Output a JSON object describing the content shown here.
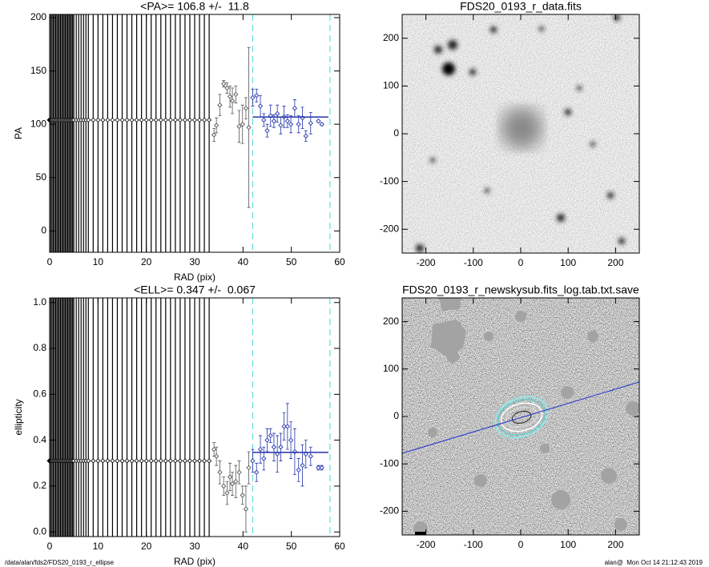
{
  "chart_data": [
    {
      "type": "profile",
      "title": "<PA>= 106.8 +/-  11.8",
      "xlabel": "RAD (pix)",
      "ylabel": "PA",
      "xlim": [
        0,
        60
      ],
      "xticks": [
        0,
        10,
        20,
        30,
        40,
        50,
        60
      ],
      "ylim": [
        -20,
        203
      ],
      "yticks": [
        0,
        50,
        100,
        150,
        200
      ],
      "inner": {
        "x": [
          0,
          0.25,
          0.5,
          0.75,
          1,
          1.25,
          1.5,
          1.75,
          2,
          2.25,
          2.5,
          2.75,
          3,
          3.25,
          3.5,
          3.75,
          4,
          4.25,
          4.5,
          4.75,
          5,
          5.5,
          6,
          6.5,
          7,
          7.5,
          8,
          9,
          10,
          11,
          12,
          13,
          14,
          15,
          16,
          17,
          18,
          19,
          20,
          21,
          22,
          23,
          24,
          25,
          26,
          27,
          28,
          29,
          30,
          31,
          32,
          33
        ],
        "values": [
          104,
          104,
          104,
          104,
          104,
          104,
          104,
          104,
          104,
          104,
          104,
          104,
          104,
          104,
          104,
          104,
          104,
          104,
          104,
          104,
          104,
          104,
          104,
          104,
          104,
          104,
          104,
          104,
          104,
          104,
          104,
          104,
          104,
          104,
          104,
          104,
          104,
          104,
          104,
          104,
          104,
          104,
          104,
          104,
          104,
          104,
          104,
          104,
          104,
          104,
          104,
          104
        ]
      },
      "outer": {
        "x": [
          34,
          34.5,
          35.2,
          36,
          36.7,
          37.3,
          37.8,
          38.5,
          39.2,
          39.9,
          40.6,
          41.2,
          42,
          42.8,
          43.6,
          44.3,
          45,
          45.7,
          46.4,
          47.1,
          47.8,
          48.5,
          49.2,
          49.9,
          50.7,
          51.5,
          52.3,
          53,
          54,
          55.6,
          56.3
        ],
        "values": [
          90,
          99,
          118,
          138,
          134,
          126,
          122,
          128,
          98,
          100,
          115,
          97,
          125,
          127,
          117,
          104,
          94,
          108,
          103,
          110,
          99,
          107,
          103,
          100,
          115,
          100,
          106,
          89,
          101,
          103,
          100
        ],
        "errors": [
          6,
          7,
          10,
          3,
          5,
          10,
          12,
          8,
          15,
          18,
          10,
          75,
          8,
          6,
          10,
          6,
          6,
          10,
          6,
          8,
          8,
          10,
          6,
          8,
          8,
          8,
          10,
          5,
          10,
          1,
          1
        ]
      },
      "fit_value": 106.8,
      "fit_range": [
        42,
        58
      ],
      "fit_color": "#2233aa",
      "range_color": "#66dddd"
    },
    {
      "type": "image",
      "title": "FDS20_0193_r_data.fits",
      "xlim": [
        -250,
        250
      ],
      "xticks": [
        -200,
        -100,
        0,
        100,
        200
      ],
      "ylim": [
        -250,
        250
      ],
      "yticks": [
        -200,
        -100,
        0,
        100,
        200
      ]
    },
    {
      "type": "profile",
      "title": "<ELL>= 0.347 +/-  0.067",
      "xlabel": "RAD (pix)",
      "ylabel": "ellipticity",
      "xlim": [
        0,
        60
      ],
      "xticks": [
        0,
        10,
        20,
        30,
        40,
        50,
        60
      ],
      "ylim": [
        -0.02,
        1.02
      ],
      "yticks": [
        {
          "value": 0,
          "label": "0.0"
        },
        0.2,
        0.4,
        0.6,
        0.8,
        {
          "value": 1,
          "label": "1.0"
        }
      ],
      "inner": {
        "x": [
          0,
          0.25,
          0.5,
          0.75,
          1,
          1.25,
          1.5,
          1.75,
          2,
          2.25,
          2.5,
          2.75,
          3,
          3.25,
          3.5,
          3.75,
          4,
          4.25,
          4.5,
          4.75,
          5,
          5.5,
          6,
          6.5,
          7,
          7.5,
          8,
          9,
          10,
          11,
          12,
          13,
          14,
          15,
          16,
          17,
          18,
          19,
          20,
          21,
          22,
          23,
          24,
          25,
          26,
          27,
          28,
          29,
          30,
          31,
          32,
          33
        ],
        "values": [
          0.31,
          0.31,
          0.31,
          0.31,
          0.31,
          0.31,
          0.31,
          0.31,
          0.31,
          0.31,
          0.31,
          0.31,
          0.31,
          0.31,
          0.31,
          0.31,
          0.31,
          0.31,
          0.31,
          0.31,
          0.31,
          0.31,
          0.31,
          0.31,
          0.31,
          0.31,
          0.31,
          0.31,
          0.31,
          0.31,
          0.31,
          0.31,
          0.31,
          0.31,
          0.31,
          0.31,
          0.31,
          0.31,
          0.31,
          0.31,
          0.31,
          0.31,
          0.31,
          0.31,
          0.31,
          0.31,
          0.31,
          0.31,
          0.31,
          0.31,
          0.31,
          0.31
        ]
      },
      "outer": {
        "x": [
          34,
          34.5,
          35.2,
          36,
          36.7,
          37.3,
          37.8,
          38.5,
          39.2,
          39.9,
          40.6,
          41.2,
          42,
          42.8,
          43.6,
          44.3,
          45,
          45.7,
          46.4,
          47.1,
          47.8,
          48.5,
          49.2,
          49.9,
          50.7,
          51.5,
          52.3,
          53,
          54,
          55.6,
          56.3
        ],
        "values": [
          0.36,
          0.33,
          0.26,
          0.2,
          0.17,
          0.24,
          0.21,
          0.22,
          0.26,
          0.16,
          0.1,
          0.28,
          0.31,
          0.26,
          0.36,
          0.32,
          0.4,
          0.42,
          0.37,
          0.34,
          0.37,
          0.46,
          0.46,
          0.4,
          0.35,
          0.27,
          0.29,
          0.34,
          0.33,
          0.28,
          0.28
        ],
        "errors": [
          0.03,
          0.04,
          0.05,
          0.04,
          0.05,
          0.06,
          0.05,
          0.07,
          0.05,
          0.04,
          0.1,
          0.07,
          0.05,
          0.04,
          0.06,
          0.05,
          0.05,
          0.03,
          0.06,
          0.08,
          0.06,
          0.06,
          0.1,
          0.08,
          0.1,
          0.05,
          0.09,
          0.06,
          0.04,
          0.01,
          0.01
        ]
      },
      "fit_value": 0.347,
      "fit_range": [
        42,
        58
      ],
      "fit_color": "#2233aa",
      "range_color": "#66dddd"
    },
    {
      "type": "image",
      "title": "FDS20_0193_r_newskysub.fits_log.tab.txt.save",
      "xlim": [
        -250,
        250
      ],
      "xticks": [
        -200,
        -100,
        0,
        100,
        200
      ],
      "ylim": [
        -250,
        250
      ],
      "yticks": [
        -200,
        -100,
        0,
        100,
        200
      ]
    }
  ],
  "footer": {
    "left": "/data/alan/fds2/FDS20_0193_r_ellipse",
    "right": "alan@  Mon Oct 14 21:12:43 2019"
  }
}
